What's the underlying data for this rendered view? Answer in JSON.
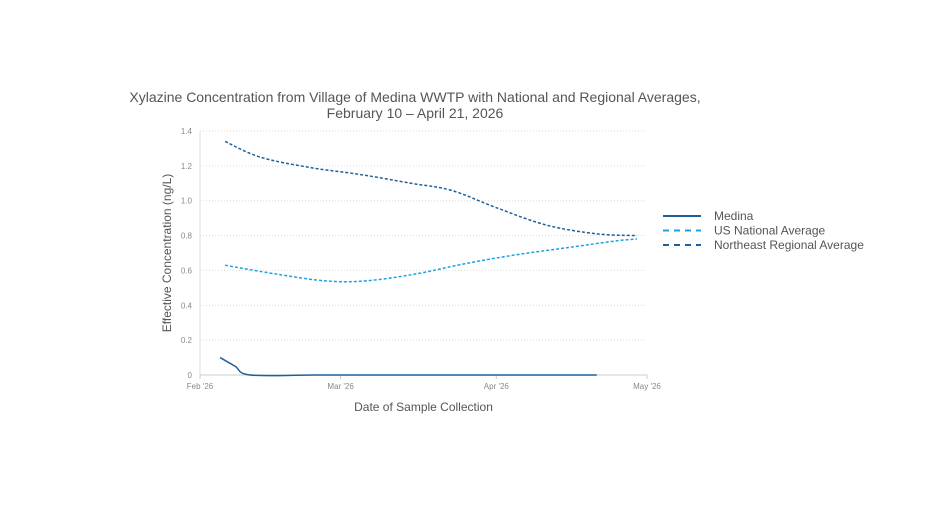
{
  "chart_data": {
    "type": "line",
    "title": "Xylazine Concentration from Village of Medina WWTP with National and Regional Averages,",
    "subtitle": "February 10 – April 21, 2026",
    "xlabel": "Date of Sample Collection",
    "ylabel": "Effective Concentration (ng/L)",
    "x_ticks": [
      "Feb '26",
      "Mar '26",
      "Apr '26",
      "May '26"
    ],
    "x_range": [
      "2026-02-01",
      "2026-05-01"
    ],
    "ylim": [
      0,
      1.4
    ],
    "y_ticks": [
      "0",
      "0.2",
      "0.4",
      "0.6",
      "0.8",
      "1.0",
      "1.2",
      "1.4"
    ],
    "grid": true,
    "legend_position": "right",
    "series": [
      {
        "name": "Medina",
        "color": "#1f5f99",
        "dash": "solid",
        "points": [
          {
            "x": "2026-02-05",
            "y": 0.1
          },
          {
            "x": "2026-02-08",
            "y": 0.05
          },
          {
            "x": "2026-02-11",
            "y": 0.0
          },
          {
            "x": "2026-02-24",
            "y": 0.0
          },
          {
            "x": "2026-03-10",
            "y": 0.0
          },
          {
            "x": "2026-03-24",
            "y": 0.0
          },
          {
            "x": "2026-04-07",
            "y": 0.0
          },
          {
            "x": "2026-04-21",
            "y": 0.0
          }
        ]
      },
      {
        "name": "US National Average",
        "color": "#1aa3e0",
        "dash": "dashed",
        "points": [
          {
            "x": "2026-02-06",
            "y": 0.63
          },
          {
            "x": "2026-02-16",
            "y": 0.58
          },
          {
            "x": "2026-02-26",
            "y": 0.54
          },
          {
            "x": "2026-03-06",
            "y": 0.54
          },
          {
            "x": "2026-03-16",
            "y": 0.58
          },
          {
            "x": "2026-03-26",
            "y": 0.64
          },
          {
            "x": "2026-04-05",
            "y": 0.69
          },
          {
            "x": "2026-04-15",
            "y": 0.73
          },
          {
            "x": "2026-04-25",
            "y": 0.77
          },
          {
            "x": "2026-04-29",
            "y": 0.78
          }
        ]
      },
      {
        "name": "Northeast Regional Average",
        "color": "#1f5f99",
        "dash": "dashed",
        "points": [
          {
            "x": "2026-02-06",
            "y": 1.34
          },
          {
            "x": "2026-02-13",
            "y": 1.25
          },
          {
            "x": "2026-02-23",
            "y": 1.19
          },
          {
            "x": "2026-03-05",
            "y": 1.15
          },
          {
            "x": "2026-03-15",
            "y": 1.1
          },
          {
            "x": "2026-03-23",
            "y": 1.06
          },
          {
            "x": "2026-04-01",
            "y": 0.96
          },
          {
            "x": "2026-04-11",
            "y": 0.86
          },
          {
            "x": "2026-04-21",
            "y": 0.81
          },
          {
            "x": "2026-04-29",
            "y": 0.8
          }
        ]
      }
    ]
  }
}
